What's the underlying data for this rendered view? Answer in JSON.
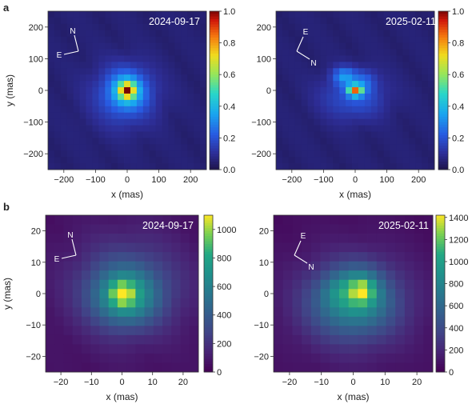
{
  "chart_data": [
    {
      "type": "heatmap",
      "panel": "a",
      "date": "2024-09-17",
      "xlabel": "x (mas)",
      "ylabel": "y (mas)",
      "xlim": [
        -250,
        250
      ],
      "ylim": [
        -250,
        250
      ],
      "xticks": [
        "-200",
        "-100",
        "0",
        "100",
        "200"
      ],
      "yticks": [
        "-200",
        "-100",
        "0",
        "100",
        "200"
      ],
      "colormap": "jet",
      "colorbar": {
        "range": [
          0,
          1.0
        ],
        "ticks": [
          "0.0",
          "0.2",
          "0.4",
          "0.6",
          "0.8",
          "1.0"
        ]
      },
      "compass": [
        "N",
        "E"
      ],
      "peak": {
        "x": 0,
        "y": 0,
        "value": 1.0
      },
      "features": [
        {
          "x": 0,
          "y": 0,
          "sx": 16,
          "sy": 16,
          "a": 0.6
        },
        {
          "x": 0,
          "y": 0,
          "sx": 42,
          "sy": 42,
          "a": 0.28
        },
        {
          "x": -10,
          "y": -20,
          "sx": 75,
          "sy": 70,
          "a": 0.14
        }
      ],
      "background": 0.05
    },
    {
      "type": "heatmap",
      "panel": "a",
      "date": "2025-02-11",
      "xlabel": "x (mas)",
      "ylabel": "",
      "xlim": [
        -250,
        250
      ],
      "ylim": [
        -250,
        250
      ],
      "xticks": [
        "-200",
        "-100",
        "0",
        "100",
        "200"
      ],
      "yticks": [
        "-200",
        "-100",
        "0",
        "100",
        "200"
      ],
      "colormap": "jet",
      "colorbar": {
        "range": [
          0,
          1.0
        ],
        "ticks": [
          "0.0",
          "0.2",
          "0.4",
          "0.6",
          "0.8",
          "1.0"
        ]
      },
      "compass": [
        "E",
        "N"
      ],
      "peak": {
        "x": 0,
        "y": 0,
        "value": 1.0
      },
      "features": [
        {
          "x": 0,
          "y": 0,
          "sx": 16,
          "sy": 12,
          "a": 0.62
        },
        {
          "x": -35,
          "y": 45,
          "sx": 25,
          "sy": 20,
          "a": 0.22
        },
        {
          "x": 30,
          "y": 30,
          "sx": 25,
          "sy": 25,
          "a": 0.12
        },
        {
          "x": -5,
          "y": -20,
          "sx": 70,
          "sy": 50,
          "a": 0.16
        }
      ],
      "background": 0.05
    },
    {
      "type": "heatmap",
      "panel": "b",
      "date": "2024-09-17",
      "xlabel": "x (mas)",
      "ylabel": "y (mas)",
      "xlim": [
        -25,
        25
      ],
      "ylim": [
        -25,
        25
      ],
      "xticks": [
        "-20",
        "-10",
        "0",
        "10",
        "20"
      ],
      "yticks": [
        "-20",
        "-10",
        "0",
        "10",
        "20"
      ],
      "colormap": "viridis",
      "colorbar": {
        "range": [
          0,
          1100
        ],
        "ticks": [
          "0",
          "200",
          "400",
          "600",
          "800",
          "1000"
        ]
      },
      "compass": [
        "N",
        "E"
      ],
      "peak": {
        "x": 0,
        "y": 0,
        "value": 1100
      },
      "features": [
        {
          "x": 0,
          "y": 0,
          "sx": 2.6,
          "sy": 2.6,
          "a": 350
        },
        {
          "x": 1,
          "y": -1,
          "sx": 7,
          "sy": 6,
          "a": 500
        },
        {
          "x": 2,
          "y": 2,
          "sx": 13,
          "sy": 11,
          "a": 300
        }
      ],
      "background": 60
    },
    {
      "type": "heatmap",
      "panel": "b",
      "date": "2025-02-11",
      "xlabel": "x (mas)",
      "ylabel": "",
      "xlim": [
        -25,
        25
      ],
      "ylim": [
        -25,
        25
      ],
      "xticks": [
        "-20",
        "-10",
        "0",
        "10",
        "20"
      ],
      "yticks": [
        "-20",
        "-10",
        "0",
        "10",
        "20"
      ],
      "colormap": "viridis",
      "colorbar": {
        "range": [
          0,
          1420
        ],
        "ticks": [
          "0",
          "200",
          "400",
          "600",
          "800",
          "1000",
          "1200",
          "1400"
        ]
      },
      "compass": [
        "E",
        "N"
      ],
      "peak": {
        "x": 3,
        "y": 1,
        "value": 1400
      },
      "features": [
        {
          "x": 3,
          "y": 1,
          "sx": 2.5,
          "sy": 2.5,
          "a": 420
        },
        {
          "x": 2,
          "y": 2,
          "sx": 5,
          "sy": 5,
          "a": 330
        },
        {
          "x": -5,
          "y": 1,
          "sx": 3.5,
          "sy": 3.5,
          "a": 160
        },
        {
          "x": 0,
          "y": -3,
          "sx": 9,
          "sy": 7,
          "a": 480
        },
        {
          "x": 0,
          "y": -3,
          "sx": 14,
          "sy": 12,
          "a": 300
        }
      ],
      "background": 60
    }
  ],
  "panel_labels": [
    "a",
    "b"
  ]
}
